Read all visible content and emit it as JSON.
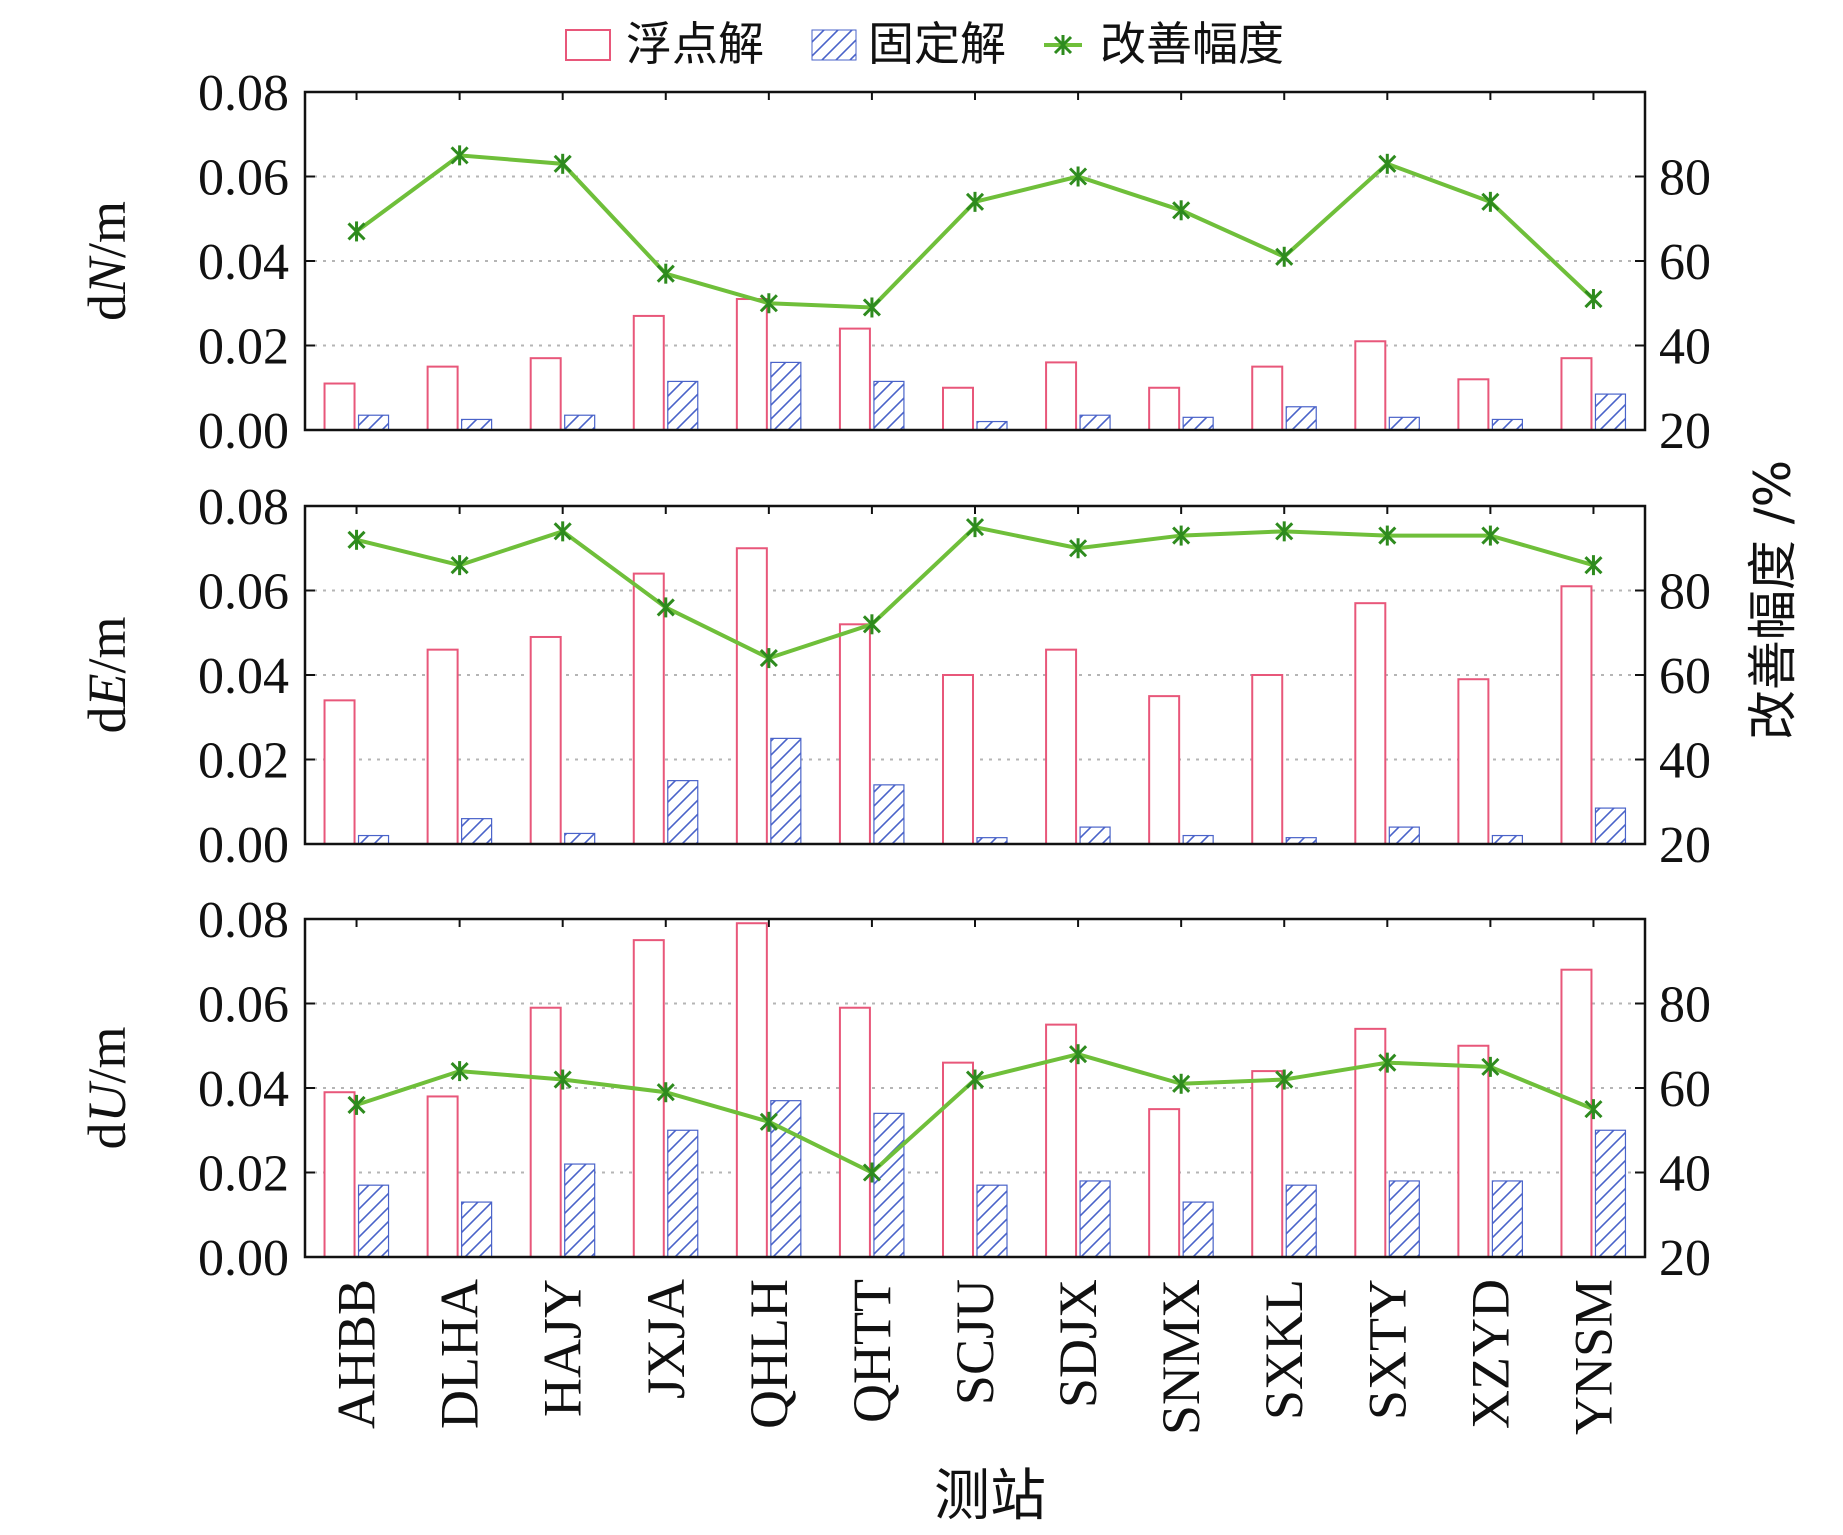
{
  "chart_data": {
    "type": "bar",
    "xlabel": "测站",
    "categories": [
      "AHBB",
      "DLHA",
      "HAJY",
      "JXJA",
      "QHLH",
      "QHTT",
      "SCJU",
      "SDJX",
      "SNMX",
      "SXKL",
      "SXTY",
      "XZYD",
      "YNSM"
    ],
    "legend": {
      "placement": "top",
      "float_label": "浮点解",
      "fixed_label": "固定解",
      "improve_label": "改善幅度"
    },
    "colors": {
      "float": "#e8577a",
      "fixed": "#4a63c9",
      "improve": "#6fbf3a",
      "improve_marker": "#2e8b1e",
      "grid": "#b5b5b5"
    },
    "right_axis": {
      "label": "改善幅度 /%",
      "ylim": [
        20,
        100
      ],
      "ticks": [
        "20",
        "40",
        "60",
        "80"
      ]
    },
    "left_ticks": [
      "0.00",
      "0.02",
      "0.04",
      "0.06",
      "0.08"
    ],
    "panels": [
      {
        "ylabel_prefix": "d",
        "ylabel_var": "N",
        "ylabel_suffix": "/m",
        "ylim": [
          0,
          0.08
        ],
        "series": [
          {
            "name": "浮点解",
            "values": [
              0.011,
              0.015,
              0.017,
              0.027,
              0.031,
              0.024,
              0.01,
              0.016,
              0.01,
              0.015,
              0.021,
              0.012,
              0.017
            ]
          },
          {
            "name": "固定解",
            "values": [
              0.0035,
              0.0025,
              0.0035,
              0.0115,
              0.016,
              0.0115,
              0.002,
              0.0035,
              0.003,
              0.0055,
              0.003,
              0.0025,
              0.0085
            ]
          },
          {
            "name": "改善幅度",
            "values": [
              67,
              85,
              83,
              57,
              50,
              49,
              74,
              80,
              72,
              61,
              83,
              74,
              51
            ]
          }
        ]
      },
      {
        "ylabel_prefix": "d",
        "ylabel_var": "E",
        "ylabel_suffix": "/m",
        "ylim": [
          0,
          0.08
        ],
        "series": [
          {
            "name": "浮点解",
            "values": [
              0.034,
              0.046,
              0.049,
              0.064,
              0.07,
              0.052,
              0.04,
              0.046,
              0.035,
              0.04,
              0.057,
              0.039,
              0.061
            ]
          },
          {
            "name": "固定解",
            "values": [
              0.002,
              0.006,
              0.0025,
              0.015,
              0.025,
              0.014,
              0.0015,
              0.004,
              0.002,
              0.0015,
              0.004,
              0.002,
              0.0085
            ]
          },
          {
            "name": "改善幅度",
            "values": [
              92,
              86,
              94,
              76,
              64,
              72,
              95,
              90,
              93,
              94,
              93,
              93,
              86
            ]
          }
        ]
      },
      {
        "ylabel_prefix": "d",
        "ylabel_var": "U",
        "ylabel_suffix": "/m",
        "ylim": [
          0,
          0.08
        ],
        "series": [
          {
            "name": "浮点解",
            "values": [
              0.039,
              0.038,
              0.059,
              0.075,
              0.079,
              0.059,
              0.046,
              0.055,
              0.035,
              0.044,
              0.054,
              0.05,
              0.068
            ]
          },
          {
            "name": "固定解",
            "values": [
              0.017,
              0.013,
              0.022,
              0.03,
              0.037,
              0.034,
              0.017,
              0.018,
              0.013,
              0.017,
              0.018,
              0.018,
              0.03
            ]
          },
          {
            "name": "改善幅度",
            "values": [
              56,
              64,
              62,
              59,
              52,
              40,
              62,
              68,
              61,
              62,
              66,
              65,
              55
            ]
          }
        ]
      }
    ]
  }
}
